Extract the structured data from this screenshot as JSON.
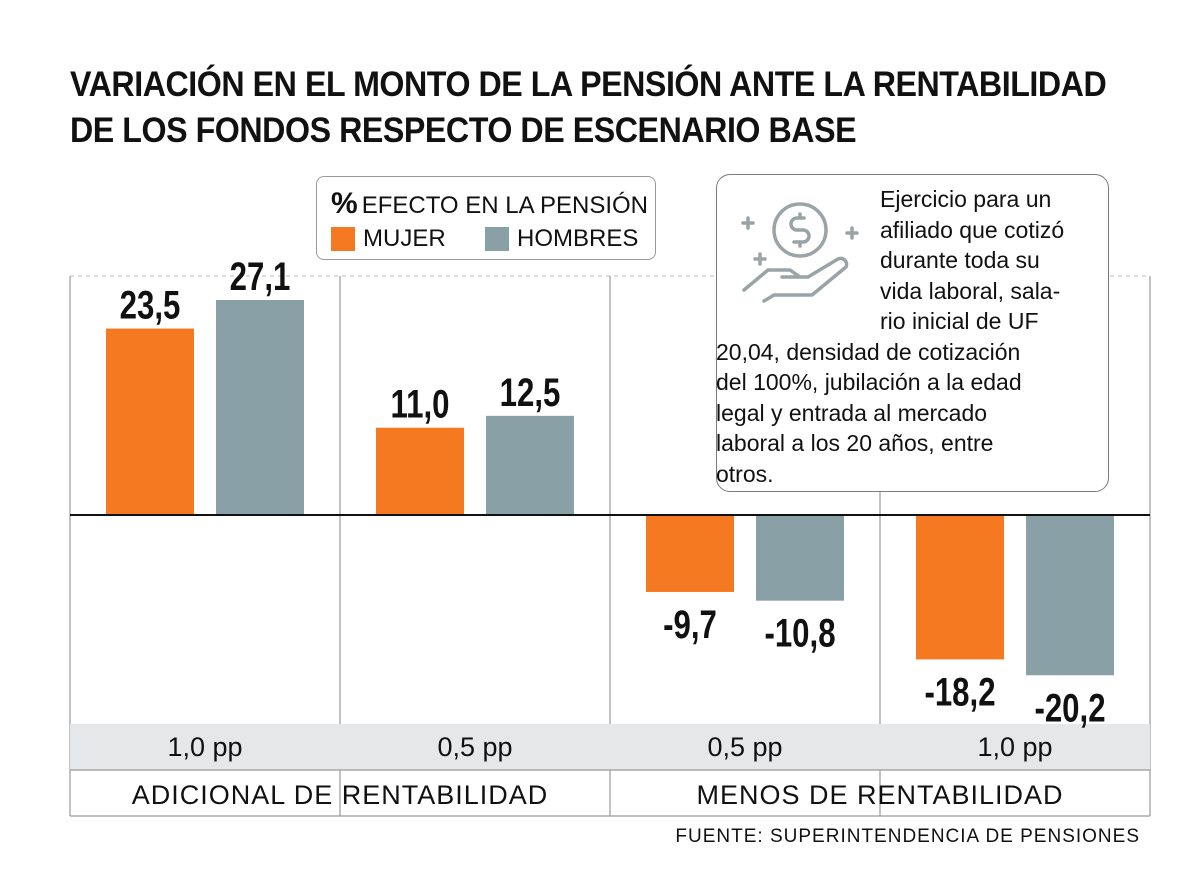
{
  "title_lines": [
    "VARIACIÓN EN EL MONTO DE LA PENSIÓN ANTE LA RENTABILIDAD",
    "DE LOS FONDOS RESPECTO DE ESCENARIO BASE"
  ],
  "legend": {
    "title_pct": "%",
    "title": "EFECTO EN LA PENSIÓN",
    "items": [
      {
        "label": "MUJER",
        "color": "#f47920"
      },
      {
        "label": "HOMBRES",
        "color": "#88a0a6"
      }
    ]
  },
  "note": "Ejercicio para un afiliado que cotizó durante toda su vida laboral, salario inicial de UF 20,04, densidad de cotización del 100%, jubilación a la edad legal y entrada al mercado laboral a los 20 años, entre otros.",
  "note_lines": [
    "Ejercicio para un",
    "afiliado que cotizó",
    "durante toda su",
    "vida laboral, sala-",
    "rio inicial de UF",
    "20,04, densidad de cotización",
    "del 100%, jubilación a la edad",
    "legal y entrada al mercado",
    "laboral a los 20 años, entre",
    "otros."
  ],
  "icon": "hand-holding-coin-icon",
  "source": "FUENTE: SUPERINTENDENCIA DE PENSIONES",
  "chart_data": {
    "type": "bar",
    "categories": [
      "1,0 pp",
      "0,5 pp",
      "0,5 pp",
      "1,0 pp"
    ],
    "groups": [
      {
        "label": "ADICIONAL DE RENTABILIDAD",
        "span": [
          0,
          1
        ]
      },
      {
        "label": "MENOS DE RENTABILIDAD",
        "span": [
          2,
          3
        ]
      }
    ],
    "series": [
      {
        "name": "MUJER",
        "values": [
          23.5,
          11.0,
          -9.7,
          -18.2
        ],
        "labels": [
          "23,5",
          "11,0",
          "-9,7",
          "-18,2"
        ],
        "color": "#f47920"
      },
      {
        "name": "HOMBRES",
        "values": [
          27.1,
          12.5,
          -10.8,
          -20.2
        ],
        "labels": [
          "27,1",
          "12,5",
          "-10,8",
          "-20,2"
        ],
        "color": "#88a0a6"
      }
    ],
    "ylim": [
      -26,
      30
    ],
    "zero_line": true,
    "grid": false
  }
}
